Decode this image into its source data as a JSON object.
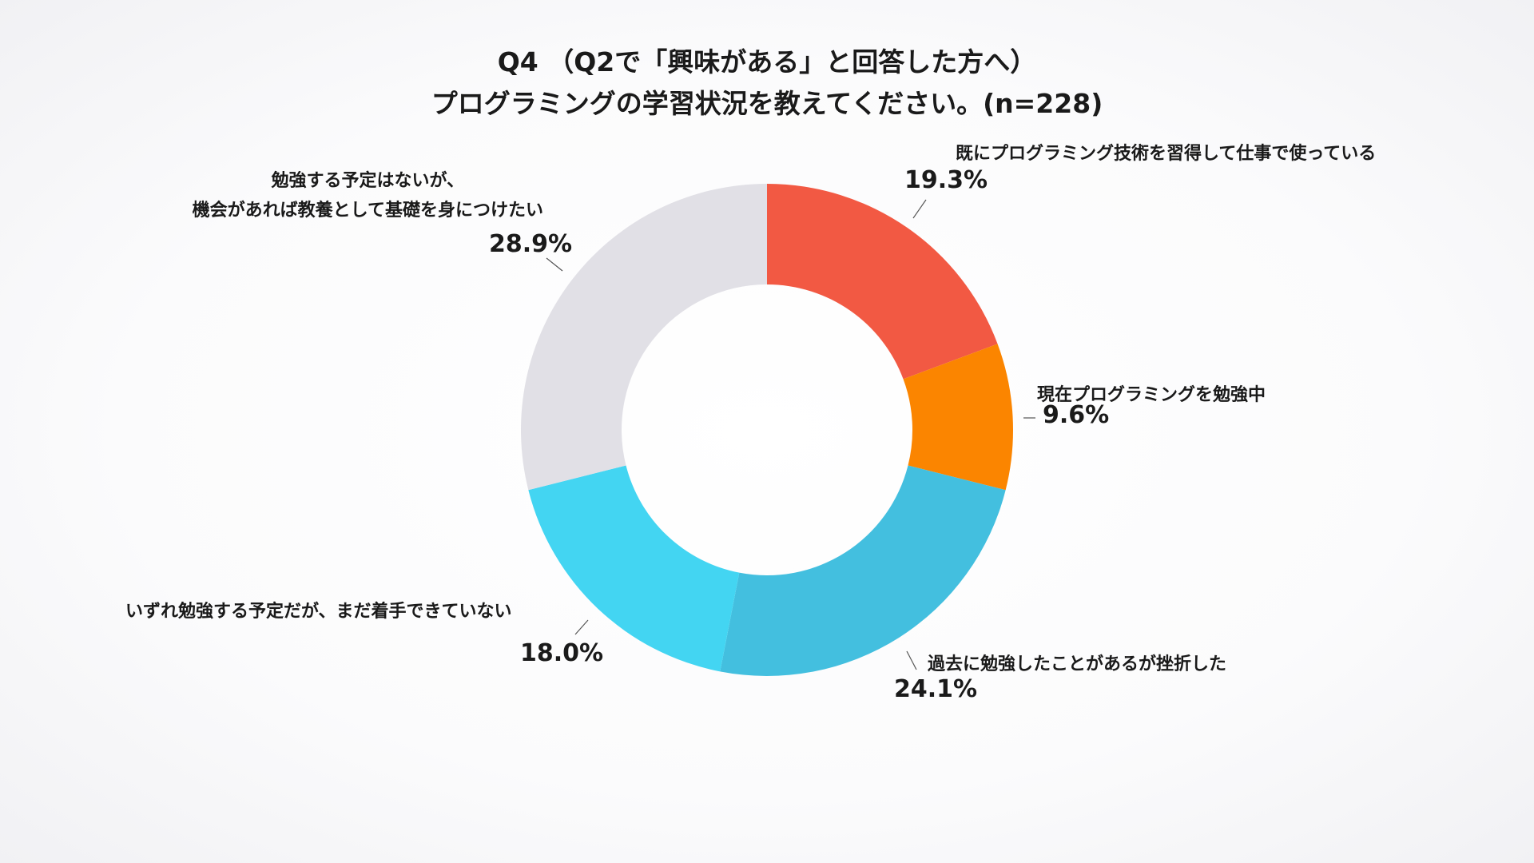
{
  "chart_data": {
    "type": "pie",
    "title": "Q4 （Q2で「興味がある」と回答した方へ）",
    "subtitle": "プログラミングの学習状況を教えてください。(n=228)",
    "slices": [
      {
        "label": "既にプログラミング技術を習得して仕事で使っている",
        "value": 19.3,
        "value_label": "19.3%",
        "color": "#f25943"
      },
      {
        "label": "現在プログラミングを勉強中",
        "value": 9.6,
        "value_label": "9.6%",
        "color": "#fb8500"
      },
      {
        "label": "過去に勉強したことがあるが挫折した",
        "value": 24.1,
        "value_label": "24.1%",
        "color": "#43bfdf"
      },
      {
        "label": "いずれ勉強する予定だが、まだ着手できていない",
        "value": 18.0,
        "value_label": "18.0%",
        "color": "#43d5f2"
      },
      {
        "label_lines": [
          "勉強する予定はないが、",
          "機会があれば教養として基礎を身につけたい"
        ],
        "value": 28.9,
        "value_label": "28.9%",
        "color": "#e1e0e6"
      }
    ],
    "style": "donut",
    "start_angle": "12 o'clock",
    "direction": "clockwise"
  }
}
